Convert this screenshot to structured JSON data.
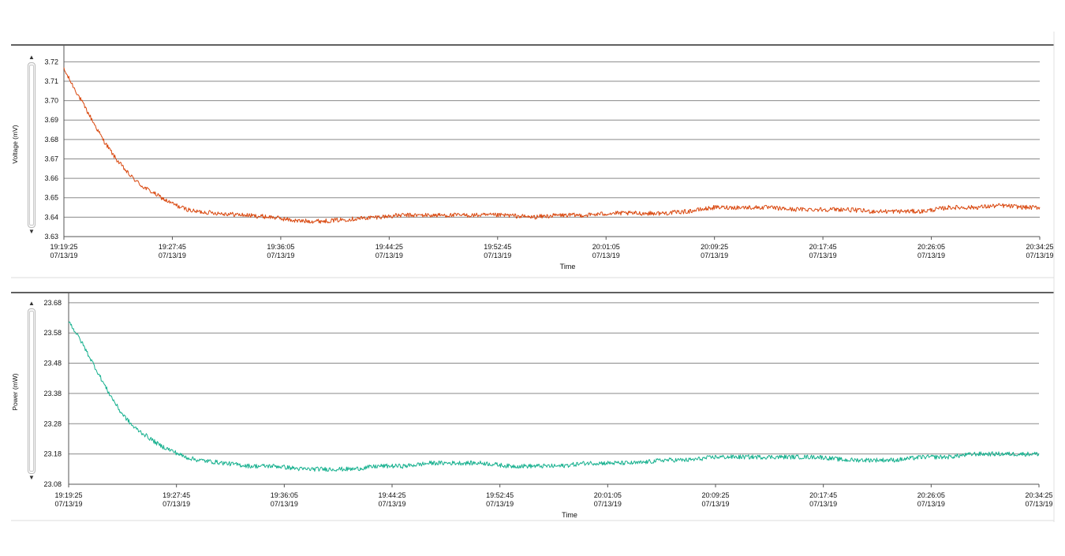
{
  "chart_data": [
    {
      "type": "line",
      "title": "",
      "xlabel": "Time",
      "ylabel": "Voltage (mV)",
      "ylim": [
        3.63,
        3.725
      ],
      "yticks": [
        "3.63",
        "3.64",
        "3.65",
        "3.66",
        "3.67",
        "3.68",
        "3.69",
        "3.70",
        "3.71",
        "3.72"
      ],
      "xticks": [
        {
          "time": "19:19:25",
          "date": "07/13/19"
        },
        {
          "time": "19:27:45",
          "date": "07/13/19"
        },
        {
          "time": "19:36:05",
          "date": "07/13/19"
        },
        {
          "time": "19:44:25",
          "date": "07/13/19"
        },
        {
          "time": "19:52:45",
          "date": "07/13/19"
        },
        {
          "time": "20:01:05",
          "date": "07/13/19"
        },
        {
          "time": "20:09:25",
          "date": "07/13/19"
        },
        {
          "time": "20:17:45",
          "date": "07/13/19"
        },
        {
          "time": "20:26:05",
          "date": "07/13/19"
        },
        {
          "time": "20:34:25",
          "date": "07/13/19"
        }
      ],
      "grid": true,
      "color": "#d9480f",
      "x": [
        "19:19:25",
        "19:20:25",
        "19:21:25",
        "19:22:25",
        "19:23:25",
        "19:24:25",
        "19:25:25",
        "19:26:25",
        "19:27:25",
        "19:28:25",
        "19:29:25",
        "19:31:25",
        "19:33:25",
        "19:35:25",
        "19:37:25",
        "19:39:25",
        "19:41:25",
        "19:43:25",
        "19:45:25",
        "19:47:25",
        "19:49:25",
        "19:51:25",
        "19:53:25",
        "19:55:25",
        "19:57:25",
        "19:59:25",
        "20:01:25",
        "20:03:25",
        "20:05:25",
        "20:07:25",
        "20:09:25",
        "20:11:25",
        "20:13:25",
        "20:15:25",
        "20:17:25",
        "20:19:25",
        "20:21:25",
        "20:23:25",
        "20:25:25",
        "20:27:25",
        "20:29:25",
        "20:31:25",
        "20:33:25",
        "20:34:25"
      ],
      "values": [
        3.716,
        3.704,
        3.692,
        3.68,
        3.67,
        3.662,
        3.656,
        3.652,
        3.648,
        3.645,
        3.643,
        3.642,
        3.641,
        3.64,
        3.638,
        3.638,
        3.639,
        3.64,
        3.641,
        3.641,
        3.641,
        3.641,
        3.641,
        3.64,
        3.641,
        3.641,
        3.642,
        3.642,
        3.642,
        3.643,
        3.645,
        3.645,
        3.645,
        3.644,
        3.644,
        3.644,
        3.643,
        3.643,
        3.643,
        3.645,
        3.645,
        3.646,
        3.645,
        3.645
      ]
    },
    {
      "type": "line",
      "title": "",
      "xlabel": "Time",
      "ylabel": "Power (mW)",
      "ylim": [
        23.08,
        23.69
      ],
      "yticks": [
        "23.08",
        "23.18",
        "23.28",
        "23.38",
        "23.48",
        "23.58",
        "23.68"
      ],
      "xticks": [
        {
          "time": "19:19:25",
          "date": "07/13/19"
        },
        {
          "time": "19:27:45",
          "date": "07/13/19"
        },
        {
          "time": "19:36:05",
          "date": "07/13/19"
        },
        {
          "time": "19:44:25",
          "date": "07/13/19"
        },
        {
          "time": "19:52:45",
          "date": "07/13/19"
        },
        {
          "time": "20:01:05",
          "date": "07/13/19"
        },
        {
          "time": "20:09:25",
          "date": "07/13/19"
        },
        {
          "time": "20:17:45",
          "date": "07/13/19"
        },
        {
          "time": "20:26:05",
          "date": "07/13/19"
        },
        {
          "time": "20:34:25",
          "date": "07/13/19"
        }
      ],
      "grid": true,
      "color": "#16b08e",
      "x": [
        "19:19:25",
        "19:20:25",
        "19:21:25",
        "19:22:25",
        "19:23:25",
        "19:24:25",
        "19:25:25",
        "19:26:25",
        "19:27:25",
        "19:28:25",
        "19:29:25",
        "19:31:25",
        "19:33:25",
        "19:35:25",
        "19:37:25",
        "19:39:25",
        "19:41:25",
        "19:43:25",
        "19:45:25",
        "19:47:25",
        "19:49:25",
        "19:51:25",
        "19:53:25",
        "19:55:25",
        "19:57:25",
        "19:59:25",
        "20:01:25",
        "20:03:25",
        "20:05:25",
        "20:07:25",
        "20:09:25",
        "20:11:25",
        "20:13:25",
        "20:15:25",
        "20:17:25",
        "20:19:25",
        "20:21:25",
        "20:23:25",
        "20:25:25",
        "20:27:25",
        "20:29:25",
        "20:31:25",
        "20:33:25",
        "20:34:25"
      ],
      "values": [
        23.62,
        23.55,
        23.47,
        23.39,
        23.32,
        23.27,
        23.24,
        23.21,
        23.19,
        23.17,
        23.16,
        23.15,
        23.14,
        23.14,
        23.13,
        23.13,
        23.13,
        23.14,
        23.14,
        23.15,
        23.15,
        23.15,
        23.14,
        23.14,
        23.14,
        23.15,
        23.15,
        23.15,
        23.16,
        23.16,
        23.17,
        23.17,
        23.17,
        23.17,
        23.17,
        23.16,
        23.16,
        23.16,
        23.17,
        23.17,
        23.18,
        23.18,
        23.18,
        23.18
      ]
    }
  ]
}
